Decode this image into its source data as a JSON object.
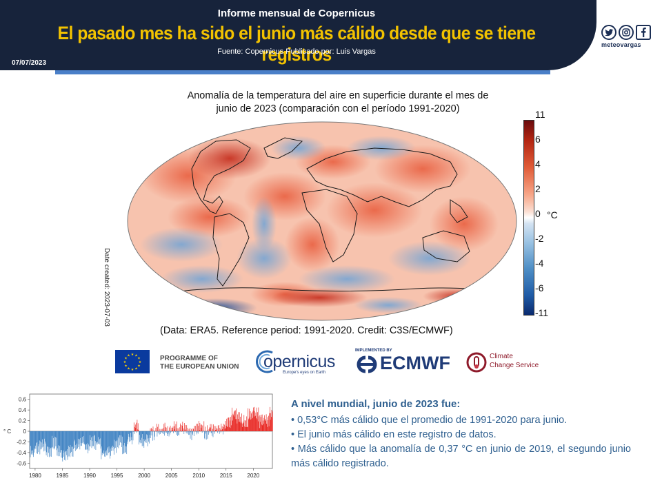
{
  "header": {
    "subtitle": "Informe mensual de Copernicus",
    "title": "El pasado mes ha sido el junio más cálido desde que se tiene registros",
    "source": "Fuente: Copernicus  Publicado por: Luis Vargas",
    "date": "07/07/2023"
  },
  "social": {
    "icons": [
      "twitter-icon",
      "instagram-icon",
      "facebook-icon"
    ],
    "handle": "meteovargas"
  },
  "map": {
    "title_line1": "Anomalía  de la temperatura  del aire en superficie durante  el mes de",
    "title_line2": "junio de 2023 (comparación  con el período 1991-2020)",
    "date_created": "Date created: 2023-07-03",
    "credit": "(Data: ERA5.  Reference period: 1991-2020.  Credit: C3S/ECMWF)",
    "colorbar": {
      "ticks": [
        "11",
        "6",
        "4",
        "2",
        "0",
        "-2",
        "-4",
        "-6",
        "-11"
      ],
      "unit": "°C",
      "warm_color": "#b22512",
      "cold_color": "#1f5ba6"
    }
  },
  "logos": {
    "eu_line1": "PROGRAMME OF",
    "eu_line2": "THE EUROPEAN UNION",
    "copernicus": "opernicus",
    "copernicus_tag": "Europe's eyes on Earth",
    "ecmwf_implemented": "IMPLEMENTED BY",
    "ecmwf": "ECMWF",
    "c3s_line1": "Climate",
    "c3s_line2": "Change Service"
  },
  "chart_data": {
    "type": "bar",
    "ylabel": "° C",
    "ylim": [
      -0.7,
      0.7
    ],
    "yticks": [
      0.6,
      0.4,
      0.2,
      0,
      -0.2,
      -0.4,
      -0.6
    ],
    "xticks": [
      1980,
      1985,
      1990,
      1995,
      2000,
      2005,
      2010,
      2015,
      2020
    ],
    "x_range": [
      1979,
      2023.5
    ],
    "positive_color": "#e8221d",
    "negative_color": "#3a7fc1",
    "annual_means": [
      [
        1979,
        -0.38
      ],
      [
        1980,
        -0.3
      ],
      [
        1981,
        -0.28
      ],
      [
        1982,
        -0.4
      ],
      [
        1983,
        -0.22
      ],
      [
        1984,
        -0.38
      ],
      [
        1985,
        -0.44
      ],
      [
        1986,
        -0.38
      ],
      [
        1987,
        -0.26
      ],
      [
        1988,
        -0.22
      ],
      [
        1989,
        -0.34
      ],
      [
        1990,
        -0.2
      ],
      [
        1991,
        -0.22
      ],
      [
        1992,
        -0.42
      ],
      [
        1993,
        -0.4
      ],
      [
        1994,
        -0.3
      ],
      [
        1995,
        -0.18
      ],
      [
        1996,
        -0.3
      ],
      [
        1997,
        -0.12
      ],
      [
        1998,
        0.08
      ],
      [
        1999,
        -0.18
      ],
      [
        2000,
        -0.16
      ],
      [
        2001,
        -0.04
      ],
      [
        2002,
        0.02
      ],
      [
        2003,
        0.02
      ],
      [
        2004,
        -0.02
      ],
      [
        2005,
        0.06
      ],
      [
        2006,
        0.02
      ],
      [
        2007,
        0.04
      ],
      [
        2008,
        -0.06
      ],
      [
        2009,
        0.04
      ],
      [
        2010,
        0.1
      ],
      [
        2011,
        -0.02
      ],
      [
        2012,
        0.02
      ],
      [
        2013,
        0.04
      ],
      [
        2014,
        0.08
      ],
      [
        2015,
        0.2
      ],
      [
        2016,
        0.32
      ],
      [
        2017,
        0.24
      ],
      [
        2018,
        0.18
      ],
      [
        2019,
        0.3
      ],
      [
        2020,
        0.32
      ],
      [
        2021,
        0.18
      ],
      [
        2022,
        0.22
      ],
      [
        2023,
        0.34
      ]
    ]
  },
  "info": {
    "title": "A nivel mundial, junio de 2023 fue:",
    "items": [
      "• 0,53°C más cálido que el promedio de 1991-2020 para junio.",
      "• El junio más cálido en este registro de datos.",
      "•  Más cálido que la anomalía de 0,37 °C en junio de 2019, el segundo junio más cálido registrado."
    ]
  }
}
